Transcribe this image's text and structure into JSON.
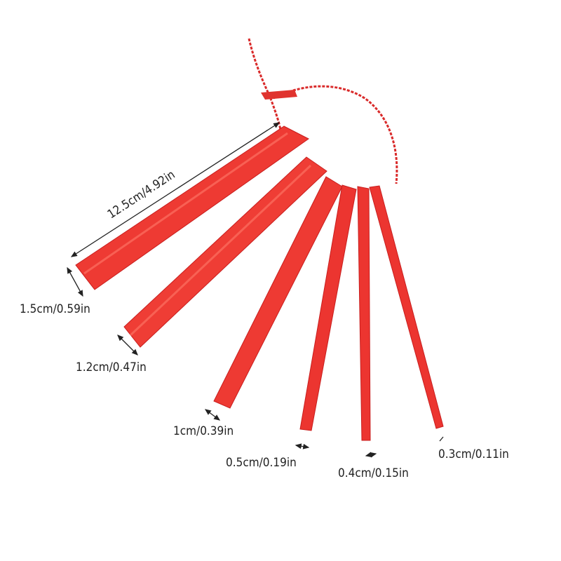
{
  "colors": {
    "stick": "#ee3a33",
    "stick_edge": "#c81e1e",
    "highlight": "#ff6a5a",
    "chain": "#d92a2a",
    "annotation": "#222222"
  },
  "dimensions": {
    "length": "12.5cm/4.92in",
    "widths": [
      "1.5cm/0.59in",
      "1.2cm/0.47in",
      "1cm/0.39in",
      "0.5cm/0.19in",
      "0.4cm/0.15in",
      "0.3cm/0.11in"
    ]
  }
}
